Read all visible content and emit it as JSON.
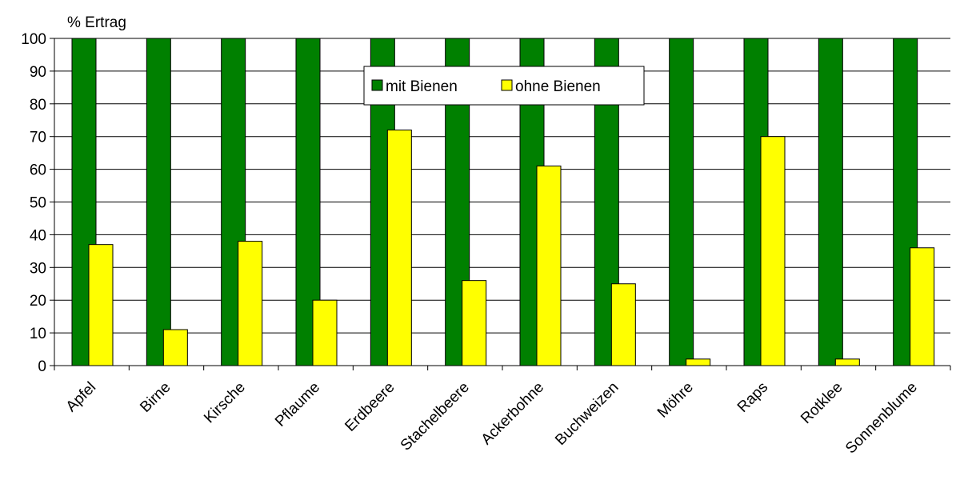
{
  "chart_data": {
    "type": "bar",
    "ylabel": "% Ertrag",
    "ylim": [
      0,
      100
    ],
    "yticks": [
      0,
      10,
      20,
      30,
      40,
      50,
      60,
      70,
      80,
      90,
      100
    ],
    "grid": true,
    "legend_position": "top-center",
    "categories": [
      "Apfel",
      "Birne",
      "Kirsche",
      "Pflaume",
      "Erdbeere",
      "Stachelbeere",
      "Ackerbohne",
      "Buchweizen",
      "Möhre",
      "Raps",
      "Rotklee",
      "Sonnenblume"
    ],
    "series": [
      {
        "name": "mit Bienen",
        "color": "#008000",
        "values": [
          100,
          100,
          100,
          100,
          100,
          100,
          100,
          100,
          100,
          100,
          100,
          100
        ]
      },
      {
        "name": "ohne Bienen",
        "color": "#ffff00",
        "values": [
          37,
          11,
          38,
          20,
          72,
          26,
          61,
          25,
          2,
          70,
          2,
          36
        ]
      }
    ]
  }
}
